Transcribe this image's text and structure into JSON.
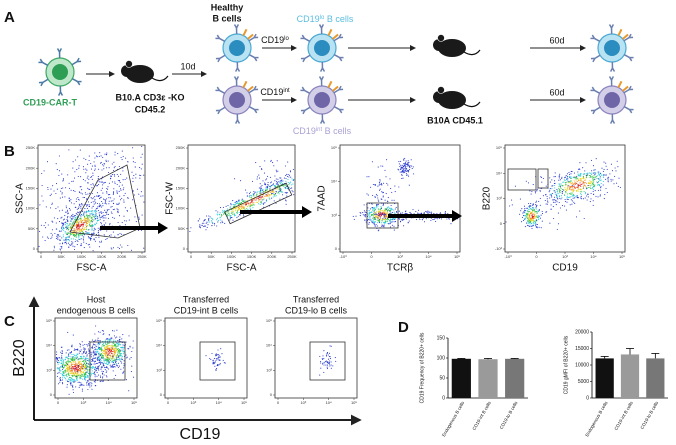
{
  "panel_labels": [
    "A",
    "B",
    "C",
    "D"
  ],
  "panel_a": {
    "car_t_label": "CD19-CAR-T",
    "recipient_mouse": [
      "B10.A CD3ε -KO",
      "CD45.2"
    ],
    "transfer_time": "10d",
    "healthy_b_cells": [
      "Healthy",
      "B cells"
    ],
    "lo_population": {
      "name": "CD19",
      "sup": "lo",
      "suffix": " B cells"
    },
    "int_population": {
      "name": "CD19",
      "sup": "int",
      "suffix": " B cells"
    },
    "sort_lo": {
      "name": "CD19",
      "sup": "lo"
    },
    "sort_int": {
      "name": "CD19",
      "sup": "int"
    },
    "second_mouse": "B10A CD45.1",
    "follow_up": [
      "60d",
      "60d"
    ]
  },
  "panel_b": {
    "plots": [
      {
        "y_label": "SSC-A",
        "x_label": "FSC-A",
        "y_ticks": [
          "0",
          "50K",
          "100K",
          "150K",
          "200K",
          "250K"
        ],
        "x_ticks": [
          "0",
          "50K",
          "100K",
          "150K",
          "200K",
          "250K"
        ]
      },
      {
        "y_label": "FSC-W",
        "x_label": "FSC-A",
        "y_ticks": [
          "0",
          "50K",
          "100K",
          "150K",
          "200K",
          "250K"
        ],
        "x_ticks": [
          "0",
          "50K",
          "100K",
          "150K",
          "200K",
          "250K"
        ]
      },
      {
        "y_label": "7AAD",
        "x_label": "TCRβ",
        "y_ticks": [
          "0",
          "10³",
          "10⁴",
          "10⁵"
        ],
        "x_ticks": [
          "-10³",
          "0",
          "10³",
          "10⁴",
          "10⁵"
        ]
      },
      {
        "y_label": "B220",
        "x_label": "CD19",
        "y_ticks": [
          "-10³",
          "0",
          "10³",
          "10⁴",
          "10⁵"
        ],
        "x_ticks": [
          "-10³",
          "0",
          "10³",
          "10⁴",
          "10⁵"
        ]
      }
    ]
  },
  "panel_c": {
    "y_label": "B220",
    "x_label": "CD19",
    "ticks": {
      "y": [
        "0",
        "10³",
        "10⁴",
        "10⁵"
      ],
      "x": [
        "0",
        "10³",
        "10⁴",
        "10⁵"
      ]
    },
    "plots": [
      {
        "title": [
          "Host",
          "endogenous B cells"
        ]
      },
      {
        "title": [
          "Transferred",
          "CD19-int B cells"
        ]
      },
      {
        "title": [
          "Transferred",
          "CD19-lo B cells"
        ]
      }
    ]
  },
  "panel_d": {
    "charts": [
      {
        "type": "bar",
        "y_label": "CD19 Frequency of B220+ cells",
        "categories": [
          "Endogenous B cells",
          "CD19-int B cells",
          "CD19-lo B cells"
        ],
        "values": [
          98,
          97,
          98
        ],
        "errors": [
          1,
          2,
          1
        ],
        "colors": [
          "#111111",
          "#9a9a9a",
          "#777777"
        ],
        "ylim": [
          0,
          150
        ],
        "yticks": [
          0,
          50,
          100,
          150
        ]
      },
      {
        "type": "bar",
        "y_label": "CD19 gMFI of B220+ cells",
        "categories": [
          "Endogenous B cells",
          "CD19-int B cells",
          "CD19-lo B cells"
        ],
        "values": [
          12000,
          13200,
          12000
        ],
        "errors": [
          600,
          1800,
          1500
        ],
        "colors": [
          "#111111",
          "#9a9a9a",
          "#777777"
        ],
        "ylim": [
          0,
          20000
        ],
        "yticks": [
          0,
          5000,
          10000,
          15000,
          20000
        ]
      }
    ]
  }
}
